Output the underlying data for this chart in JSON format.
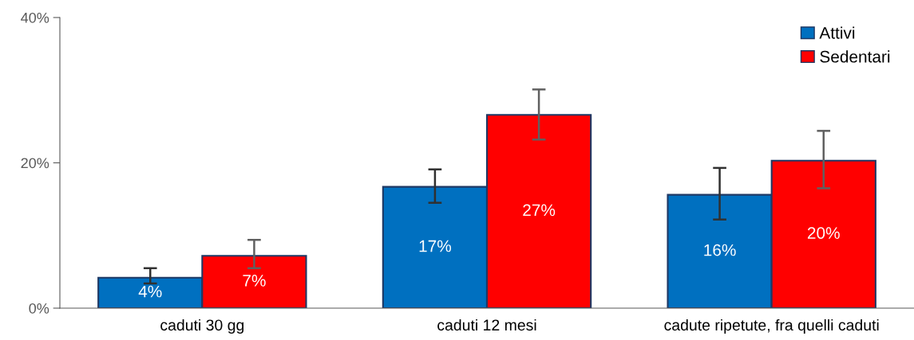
{
  "chart_data": {
    "type": "bar",
    "categories": [
      "caduti 30 gg",
      "caduti 12 mesi",
      "cadute ripetute, fra quelli caduti"
    ],
    "series": [
      {
        "name": "Attivi",
        "color": "#0070c0",
        "values": [
          4.2,
          16.7,
          15.6
        ],
        "errors": [
          [
            3.4,
            5.5
          ],
          [
            14.5,
            19.1
          ],
          [
            12.2,
            19.3
          ]
        ],
        "value_labels": [
          "4%",
          "17%",
          "16%"
        ]
      },
      {
        "name": "Sedentari",
        "color": "#ff0000",
        "values": [
          7.2,
          26.6,
          20.3
        ],
        "errors": [
          [
            5.5,
            9.4
          ],
          [
            23.2,
            30.1
          ],
          [
            16.5,
            24.4
          ]
        ],
        "value_labels": [
          "7%",
          "27%",
          "20%"
        ]
      }
    ],
    "ylim": [
      0,
      40
    ],
    "yticks": [
      {
        "value": 0,
        "label": "0%"
      },
      {
        "value": 20,
        "label": "20%"
      },
      {
        "value": 40,
        "label": "40%"
      }
    ],
    "grid": false,
    "legend": "top right"
  }
}
